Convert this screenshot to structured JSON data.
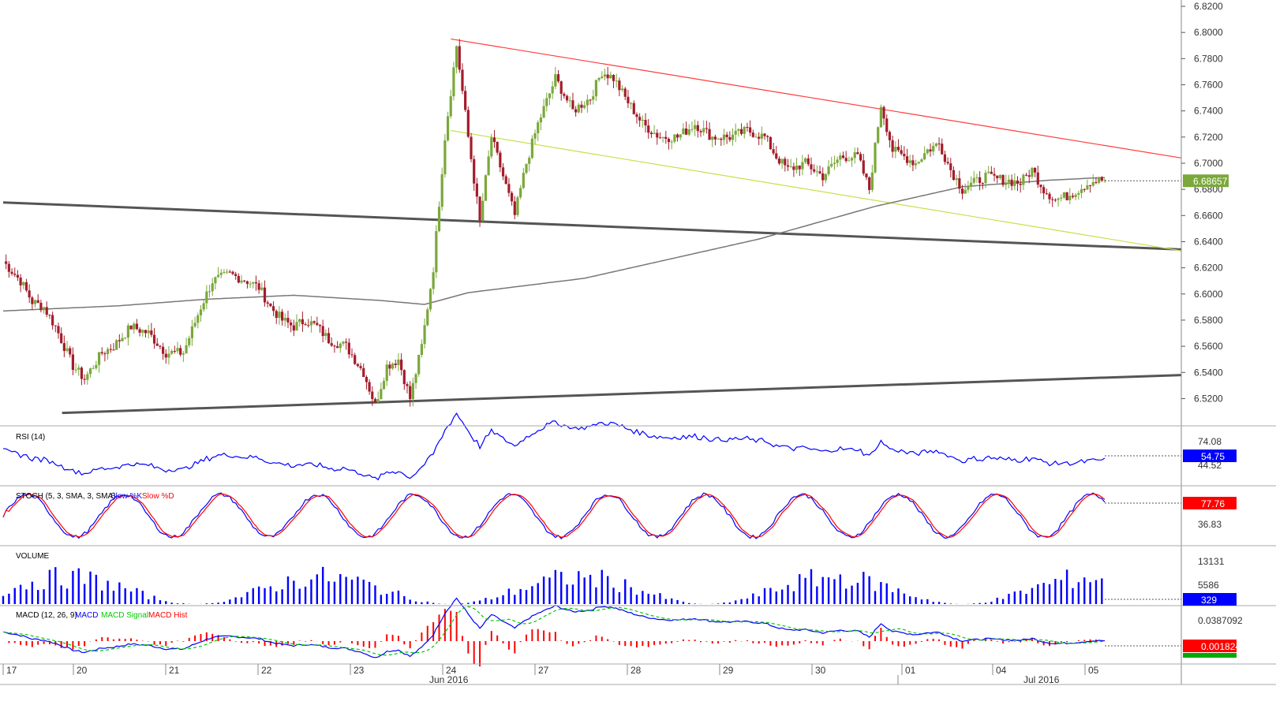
{
  "chart_data": {
    "type": "candlestick",
    "price_panel": {
      "ylim": [
        6.51,
        6.82
      ],
      "y_ticks": [
        "6.8200",
        "6.8000",
        "6.7800",
        "6.7600",
        "6.7400",
        "6.7200",
        "6.7000",
        "6.6800",
        "6.6600",
        "6.6400",
        "6.6200",
        "6.6000",
        "6.5800",
        "6.5600",
        "6.5400",
        "6.5200"
      ],
      "y_tick_values": [
        6.82,
        6.8,
        6.78,
        6.76,
        6.74,
        6.72,
        6.7,
        6.68,
        6.66,
        6.64,
        6.62,
        6.6,
        6.58,
        6.56,
        6.54,
        6.52
      ],
      "last_price": "6.68657",
      "last_price_value": 6.68657,
      "up_color": "#7aa83a",
      "down_color": "#a31c2b",
      "price_keypoints": [
        [
          0,
          6.625
        ],
        [
          6,
          6.61
        ],
        [
          10,
          6.594
        ],
        [
          14,
          6.59
        ],
        [
          18,
          6.575
        ],
        [
          24,
          6.545
        ],
        [
          28,
          6.535
        ],
        [
          34,
          6.555
        ],
        [
          38,
          6.56
        ],
        [
          44,
          6.575
        ],
        [
          50,
          6.57
        ],
        [
          56,
          6.555
        ],
        [
          62,
          6.555
        ],
        [
          68,
          6.59
        ],
        [
          72,
          6.61
        ],
        [
          78,
          6.615
        ],
        [
          84,
          6.61
        ],
        [
          88,
          6.605
        ],
        [
          92,
          6.59
        ],
        [
          96,
          6.58
        ],
        [
          100,
          6.575
        ],
        [
          104,
          6.58
        ],
        [
          108,
          6.575
        ],
        [
          112,
          6.565
        ],
        [
          118,
          6.56
        ],
        [
          124,
          6.54
        ],
        [
          128,
          6.515
        ],
        [
          132,
          6.545
        ],
        [
          136,
          6.55
        ],
        [
          140,
          6.52
        ],
        [
          144,
          6.56
        ],
        [
          148,
          6.62
        ],
        [
          152,
          6.72
        ],
        [
          156,
          6.79
        ],
        [
          160,
          6.72
        ],
        [
          164,
          6.655
        ],
        [
          168,
          6.72
        ],
        [
          172,
          6.69
        ],
        [
          176,
          6.66
        ],
        [
          180,
          6.7
        ],
        [
          184,
          6.73
        ],
        [
          190,
          6.765
        ],
        [
          196,
          6.74
        ],
        [
          202,
          6.75
        ],
        [
          206,
          6.77
        ],
        [
          210,
          6.765
        ],
        [
          214,
          6.75
        ],
        [
          220,
          6.73
        ],
        [
          226,
          6.72
        ],
        [
          232,
          6.72
        ],
        [
          238,
          6.73
        ],
        [
          244,
          6.72
        ],
        [
          250,
          6.72
        ],
        [
          256,
          6.725
        ],
        [
          262,
          6.72
        ],
        [
          266,
          6.705
        ],
        [
          270,
          6.695
        ],
        [
          276,
          6.7
        ],
        [
          282,
          6.69
        ],
        [
          288,
          6.705
        ],
        [
          294,
          6.705
        ],
        [
          298,
          6.68
        ],
        [
          302,
          6.745
        ],
        [
          306,
          6.71
        ],
        [
          310,
          6.705
        ],
        [
          314,
          6.7
        ],
        [
          318,
          6.71
        ],
        [
          322,
          6.715
        ],
        [
          326,
          6.695
        ],
        [
          330,
          6.68
        ],
        [
          334,
          6.685
        ],
        [
          338,
          6.69
        ],
        [
          342,
          6.688
        ],
        [
          350,
          6.685
        ],
        [
          354,
          6.695
        ],
        [
          358,
          6.68
        ],
        [
          362,
          6.672
        ],
        [
          366,
          6.675
        ],
        [
          370,
          6.68
        ],
        [
          374,
          6.686
        ],
        [
          378,
          6.687
        ]
      ],
      "ma_keypoints": [
        [
          0,
          6.587
        ],
        [
          40,
          6.591
        ],
        [
          70,
          6.596
        ],
        [
          100,
          6.599
        ],
        [
          130,
          6.595
        ],
        [
          145,
          6.592
        ],
        [
          160,
          6.601
        ],
        [
          200,
          6.612
        ],
        [
          260,
          6.642
        ],
        [
          300,
          6.667
        ],
        [
          330,
          6.682
        ],
        [
          360,
          6.687
        ],
        [
          378,
          6.689
        ]
      ],
      "red_line": [
        [
          152,
          6.795
        ],
        [
          400,
          6.704
        ]
      ],
      "yellow_line": [
        [
          152,
          6.725
        ],
        [
          400,
          6.633
        ]
      ],
      "gray_line_upper": [
        [
          0,
          6.67
        ],
        [
          400,
          6.634
        ]
      ],
      "gray_line_lower": [
        [
          20,
          6.509
        ],
        [
          400,
          6.538
        ]
      ]
    },
    "panels": [
      {
        "name": "RSI (14)",
        "label_color": "#000",
        "series": [
          {
            "name": "RSI",
            "color": "#0000ff"
          }
        ],
        "ticks": [
          "74.08",
          "44.52"
        ],
        "last_value": "54.75",
        "tag_color": "#0000ff"
      },
      {
        "name": "STOCH (5, 3, SMA, 3, SMA)",
        "series": [
          {
            "name": "Slow %K",
            "color": "#0000ff"
          },
          {
            "name": "Slow %D",
            "color": "#ff0000"
          }
        ],
        "ticks": [
          "36.83"
        ],
        "last_value": "77.76",
        "tag_color": "#ff0000"
      },
      {
        "name": "VOLUME",
        "series": [
          {
            "name": "VOLUME",
            "color": "#0000ff"
          }
        ],
        "ticks": [
          "13131",
          "5586"
        ],
        "last_value": "329",
        "tag_color": "#0000ff"
      },
      {
        "name": "MACD (12, 26, 9)",
        "series": [
          {
            "name": "MACD",
            "color": "#0000ff"
          },
          {
            "name": "MACD Signal",
            "color": "#00cc00"
          },
          {
            "name": "MACD Hist",
            "color": "#ff0000"
          }
        ],
        "ticks": [
          "0.0387092",
          "0.0"
        ],
        "last_value": "0.0018242",
        "tag_color": "#ff0000",
        "tag2_color": "#00aa00"
      }
    ],
    "x_axis": {
      "day_labels": [
        "17",
        "20",
        "21",
        "22",
        "23",
        "24",
        "27",
        "28",
        "29",
        "30",
        "01",
        "04",
        "05"
      ],
      "month_labels": [
        "Jun 2016",
        "Jul 2016"
      ]
    }
  }
}
